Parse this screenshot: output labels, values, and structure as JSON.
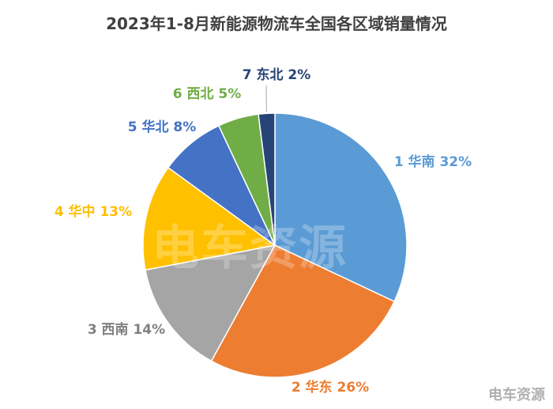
{
  "chart_data": {
    "type": "pie",
    "title": "2023年1-8月新能源物流车全国各区域销量情况",
    "slices": [
      {
        "label": "1 华南 32%",
        "value": 32,
        "color": "#5B9BD5",
        "label_color": "#5B9BD5"
      },
      {
        "label": "2 华东 26%",
        "value": 26,
        "color": "#ED7D31",
        "label_color": "#ED7D31"
      },
      {
        "label": "3 西南 14%",
        "value": 14,
        "color": "#A5A5A5",
        "label_color": "#808080"
      },
      {
        "label": "4 华中 13%",
        "value": 13,
        "color": "#FFC000",
        "label_color": "#FFC000"
      },
      {
        "label": "5 华北 8%",
        "value": 8,
        "color": "#4472C4",
        "label_color": "#4472C4"
      },
      {
        "label": "6 西北 5%",
        "value": 5,
        "color": "#70AD47",
        "label_color": "#70AD47"
      },
      {
        "label": "7 东北 2%",
        "value": 2,
        "color": "#264478",
        "label_color": "#264478"
      }
    ],
    "start": "12 o'clock",
    "direction": "clockwise",
    "legend": "none"
  },
  "watermark": {
    "center_text": "电车资源",
    "corner_text": "电车资源"
  }
}
